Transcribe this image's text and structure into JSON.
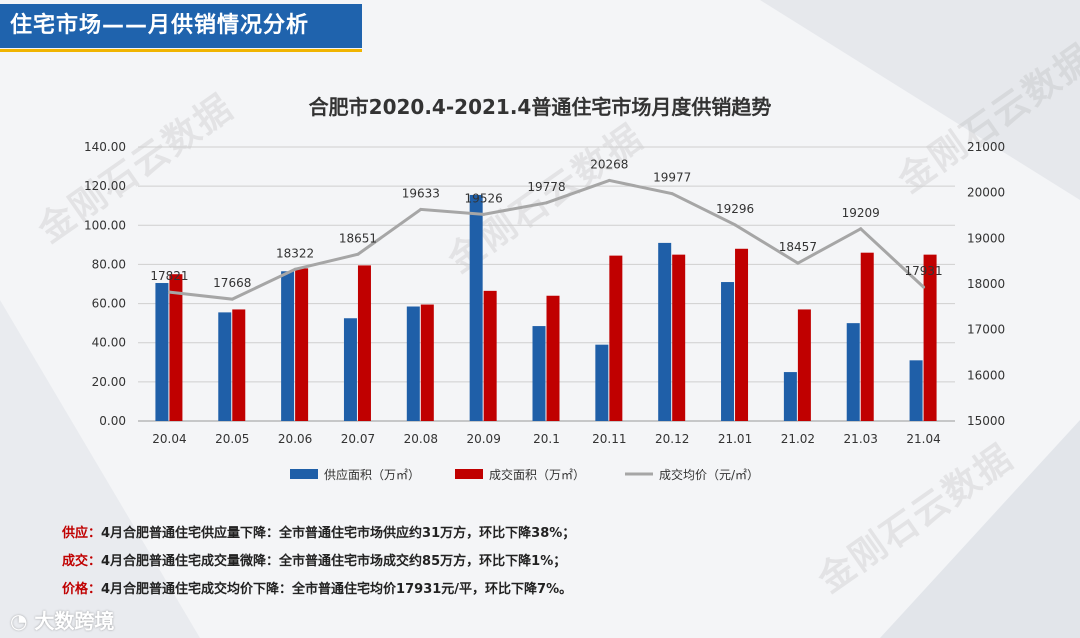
{
  "header": {
    "title": "住宅市场——月供销情况分析"
  },
  "watermarks": [
    "金刚石云数据",
    "金刚石云数据",
    "金刚石云数据",
    "金刚石云数据"
  ],
  "chart_data": {
    "type": "bar",
    "title": "合肥市2020.4-2021.4普通住宅市场月度供销趋势",
    "categories": [
      "20.04",
      "20.05",
      "20.06",
      "20.07",
      "20.08",
      "20.09",
      "20.1",
      "20.11",
      "20.12",
      "21.01",
      "21.02",
      "21.03",
      "21.04"
    ],
    "series": [
      {
        "name": "供应面积（万㎡）",
        "type": "bar",
        "axis": "left",
        "color": "#1f5fa8",
        "values": [
          70.5,
          55.5,
          76.5,
          52.5,
          58.5,
          115.5,
          48.5,
          39.0,
          91.0,
          71.0,
          25.0,
          50.0,
          31.0
        ]
      },
      {
        "name": "成交面积（万㎡）",
        "type": "bar",
        "axis": "left",
        "color": "#c00000",
        "values": [
          75.0,
          57.0,
          78.0,
          79.5,
          59.5,
          66.5,
          64.0,
          84.5,
          85.0,
          88.0,
          57.0,
          86.0,
          85.0
        ]
      },
      {
        "name": "成交均价（元/㎡）",
        "type": "line",
        "axis": "right",
        "color": "#a6a6a6",
        "values": [
          17821,
          17668,
          18322,
          18651,
          19633,
          19526,
          19778,
          20268,
          19977,
          19296,
          18457,
          19209,
          17931
        ],
        "labels": [
          "17821",
          "17668",
          "18322",
          "18651",
          "19633",
          "19526",
          "19778",
          "20268",
          "19977",
          "19296",
          "18457",
          "19209",
          "17931"
        ]
      }
    ],
    "y_left": {
      "min": 0,
      "max": 140,
      "step": 20,
      "ticks": [
        "0.00",
        "20.00",
        "40.00",
        "60.00",
        "80.00",
        "100.00",
        "120.00",
        "140.00"
      ]
    },
    "y_right": {
      "min": 15000,
      "max": 21000,
      "step": 1000,
      "ticks": [
        "15000",
        "16000",
        "17000",
        "18000",
        "19000",
        "20000",
        "21000"
      ]
    },
    "grid": true,
    "legend_position": "bottom"
  },
  "notes": [
    {
      "tag": "供应：",
      "text": "4月合肥普通住宅供应量下降：全市普通住宅市场供应约31万方，环比下降38%；"
    },
    {
      "tag": "成交：",
      "text": "4月合肥普通住宅成交量微降：全市普通住宅市场成交约85万方，环比下降1%；"
    },
    {
      "tag": "价格：",
      "text": "4月合肥普通住宅成交均价下降：全市普通住宅均价17931元/平，环比下降7%。"
    }
  ],
  "footer": {
    "logo": "大数跨境"
  }
}
